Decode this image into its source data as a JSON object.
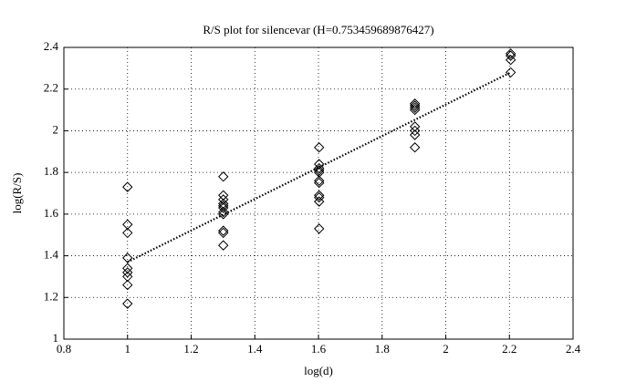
{
  "chart_data": {
    "type": "scatter",
    "title": "R/S plot for silencevar (H=0.753459689876427)",
    "xlabel": "log(d)",
    "ylabel": "log(R/S)",
    "xlim": [
      0.8,
      2.4
    ],
    "ylim": [
      1,
      2.4
    ],
    "xticks": [
      0.8,
      1,
      1.2,
      1.4,
      1.6,
      1.8,
      2,
      2.2,
      2.4
    ],
    "yticks": [
      1,
      1.2,
      1.4,
      1.6,
      1.8,
      2,
      2.2,
      2.4
    ],
    "grid": true,
    "series": [
      {
        "marker": "diamond",
        "color": "#000000",
        "x": [
          1,
          1,
          1,
          1,
          1,
          1,
          1,
          1,
          1,
          1.301,
          1.301,
          1.301,
          1.301,
          1.301,
          1.301,
          1.301,
          1.301,
          1.301,
          1.301,
          1.301,
          1.602,
          1.602,
          1.602,
          1.602,
          1.602,
          1.602,
          1.602,
          1.602,
          1.602,
          1.602,
          1.602,
          1.903,
          1.903,
          1.903,
          1.903,
          1.903,
          1.903,
          1.903,
          1.903,
          2.204,
          2.204,
          2.204,
          2.204
        ],
        "values": [
          1.73,
          1.55,
          1.51,
          1.39,
          1.34,
          1.32,
          1.3,
          1.26,
          1.17,
          1.78,
          1.69,
          1.67,
          1.65,
          1.64,
          1.63,
          1.61,
          1.6,
          1.52,
          1.51,
          1.45,
          1.92,
          1.84,
          1.82,
          1.81,
          1.8,
          1.76,
          1.75,
          1.69,
          1.68,
          1.66,
          1.53,
          2.13,
          2.12,
          2.11,
          2.1,
          2.02,
          2.0,
          1.98,
          1.92,
          2.37,
          2.36,
          2.34,
          2.28
        ]
      },
      {
        "marker": "dotted-line",
        "color": "#000000",
        "x": [
          1,
          2.204
        ],
        "values": [
          1.37,
          2.28
        ]
      }
    ]
  }
}
